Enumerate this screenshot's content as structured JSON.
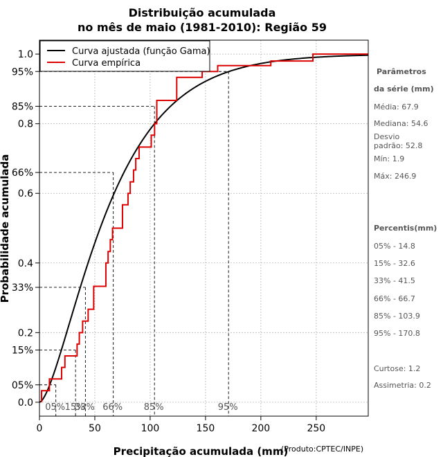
{
  "chart_data": {
    "type": "line",
    "title_line1": "Distribuição acumulada",
    "title_line2": "no mês de maio (1981-2010): Região 59",
    "xlabel": "Precipitação acumulada (mm)",
    "ylabel": "Probabilidade acumulada",
    "credit": "(Produto:CPTEC/INPE)",
    "xlim": [
      0,
      297
    ],
    "ylim": [
      -0.04,
      1.04
    ],
    "xticks": [
      0,
      50,
      100,
      150,
      200,
      250
    ],
    "yticks": [
      {
        "value": 0.0,
        "label": "0.0"
      },
      {
        "value": 0.2,
        "label": "0.2"
      },
      {
        "value": 0.4,
        "label": "0.4"
      },
      {
        "value": 0.6,
        "label": "0.6"
      },
      {
        "value": 0.8,
        "label": "0.8"
      },
      {
        "value": 1.0,
        "label": "1.0"
      }
    ],
    "percentile_yticks": [
      {
        "value": 0.05,
        "label": "05%"
      },
      {
        "value": 0.15,
        "label": "15%"
      },
      {
        "value": 0.33,
        "label": "33%"
      },
      {
        "value": 0.66,
        "label": "66%"
      },
      {
        "value": 0.85,
        "label": "85%"
      },
      {
        "value": 0.95,
        "label": "95%"
      }
    ],
    "percentile_markers": [
      {
        "prob": 0.05,
        "x": 14.8,
        "label": "05%"
      },
      {
        "prob": 0.15,
        "x": 32.6,
        "label": "15%"
      },
      {
        "prob": 0.33,
        "x": 41.5,
        "label": "33%"
      },
      {
        "prob": 0.66,
        "x": 66.7,
        "label": "66%"
      },
      {
        "prob": 0.85,
        "x": 103.9,
        "label": "85%"
      },
      {
        "prob": 0.95,
        "x": 170.8,
        "label": "95%"
      }
    ],
    "grid": true,
    "legend_position": "top-left",
    "series": [
      {
        "name": "Curva ajustada (função Gama)",
        "color": "#000000",
        "kind": "gamma-cdf",
        "shape": 1.653,
        "scale": 41.08
      },
      {
        "name": "Curva empírica",
        "color": "#dd0000",
        "kind": "step",
        "x": [
          1.9,
          9,
          20,
          23,
          34,
          36,
          39,
          44,
          49,
          60,
          62,
          64,
          66,
          75,
          80,
          82,
          85,
          87,
          90,
          101,
          104,
          106,
          124,
          147,
          161,
          209,
          247
        ],
        "y": [
          0.033,
          0.067,
          0.1,
          0.133,
          0.167,
          0.2,
          0.233,
          0.267,
          0.333,
          0.4,
          0.433,
          0.467,
          0.5,
          0.567,
          0.6,
          0.633,
          0.667,
          0.7,
          0.733,
          0.767,
          0.8,
          0.867,
          0.933,
          0.95,
          0.967,
          0.98,
          1.0
        ]
      }
    ]
  },
  "side_panel": {
    "params_title_line1": "Parâmetros",
    "params_title_line2": "da série (mm)",
    "media": "Média: 67.9",
    "mediana": "Mediana: 54.6",
    "desvio_line1": "Desvio",
    "desvio_line2": "padrão: 52.8",
    "min": "Mín: 1.9",
    "max": "Máx: 246.9",
    "percentis_title": "Percentis(mm)",
    "percentis": [
      "05% - 14.8",
      "15% - 32.6",
      "33% - 41.5",
      "66% - 66.7",
      "85% - 103.9",
      "95% - 170.8"
    ],
    "curtose": "Curtose: 1.2",
    "assimetria": "Assimetria: 0.2"
  }
}
